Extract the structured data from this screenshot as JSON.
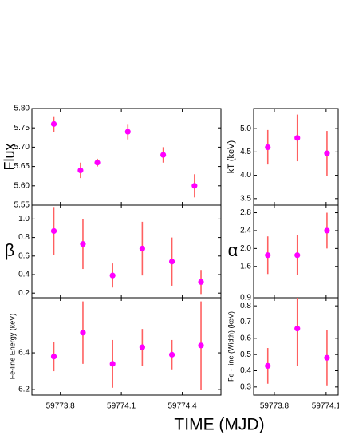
{
  "chart_data": [
    {
      "type": "scatter",
      "ylabel": "Flux",
      "x": [
        59773.768,
        59773.899,
        59773.982,
        59774.132,
        59774.306,
        59774.46
      ],
      "values": [
        5.76,
        5.64,
        5.66,
        5.74,
        5.68,
        5.6
      ],
      "errors": [
        0.02,
        0.02,
        0.01,
        0.02,
        0.02,
        0.03
      ],
      "xlim": [
        59773.66,
        59774.59
      ],
      "ylim": [
        5.55,
        5.8
      ],
      "xticks": [
        59773.8,
        59774.1,
        59774.4
      ],
      "yticks": [
        {
          "value": 5.55,
          "label": "5.55"
        },
        {
          "value": 5.6,
          "label": "5.60"
        },
        {
          "value": 5.65,
          "label": "5.65"
        },
        {
          "value": 5.7,
          "label": "5.70"
        },
        {
          "value": 5.75,
          "label": "5.75"
        },
        {
          "value": 5.8,
          "label": "5.80"
        }
      ],
      "color": "#ff00ff",
      "error_color": "#ff6060",
      "xtick_labels": false
    },
    {
      "type": "scatter",
      "ylabel": "β",
      "x": [
        59773.768,
        59773.911,
        59774.057,
        59774.203,
        59774.349,
        59774.492
      ],
      "values": [
        0.87,
        0.73,
        0.39,
        0.68,
        0.54,
        0.32
      ],
      "errors": [
        0.26,
        0.27,
        0.13,
        0.29,
        0.26,
        0.13
      ],
      "xlim": [
        59773.66,
        59774.59
      ],
      "ylim": [
        0.15,
        1.15
      ],
      "xticks": [
        59773.8,
        59774.1,
        59774.4
      ],
      "yticks": [
        0.2,
        0.4,
        0.6,
        0.8,
        {
          "value": 1,
          "label": "1.0"
        }
      ],
      "color": "#ff00ff",
      "error_color": "#ff6060",
      "xtick_labels": false
    },
    {
      "type": "scatter",
      "ylabel": "Fe-line Energy (keV)",
      "xlabel": "TIME (MJD)",
      "x": [
        59773.768,
        59773.911,
        59774.057,
        59774.203,
        59774.349,
        59774.492
      ],
      "values": [
        6.38,
        6.51,
        6.34,
        6.43,
        6.39,
        6.44
      ],
      "errors": [
        0.08,
        0.17,
        0.13,
        0.1,
        0.08,
        0.24
      ],
      "xlim": [
        59773.66,
        59774.59
      ],
      "ylim": [
        6.17,
        6.7
      ],
      "xticks": [
        59773.8,
        59774.1,
        59774.4
      ],
      "yticks": [
        6.2,
        6.4
      ],
      "color": "#ff00ff",
      "error_color": "#ff6060",
      "xtick_labels": true
    },
    {
      "type": "scatter",
      "ylabel": "kT (keV)",
      "x": [
        59773.762,
        59773.933,
        59774.105
      ],
      "values": [
        4.6,
        4.8,
        4.47
      ],
      "errors": [
        0.37,
        0.5,
        0.48
      ],
      "xlim": [
        59773.68,
        59774.17
      ],
      "ylim": [
        3.36,
        5.43
      ],
      "xticks": [
        59773.8,
        59774.1
      ],
      "yticks": [
        3.5,
        {
          "value": 4,
          "label": "4.0"
        },
        4.5,
        {
          "value": 5,
          "label": "5.0"
        }
      ],
      "color": "#ff00ff",
      "error_color": "#ff6060",
      "xtick_labels": false
    },
    {
      "type": "scatter",
      "ylabel": "α",
      "x": [
        59773.762,
        59773.933,
        59774.105
      ],
      "values": [
        1.85,
        1.85,
        2.4
      ],
      "errors": [
        0.42,
        0.45,
        0.4
      ],
      "xlim": [
        59773.68,
        59774.17
      ],
      "ylim": [
        0.9,
        2.97
      ],
      "xticks": [
        59773.8,
        59774.1
      ],
      "yticks": [
        0.9,
        1.6,
        {
          "value": 2,
          "label": "2.0"
        },
        2.4,
        2.8
      ],
      "color": "#ff00ff",
      "error_color": "#ff6060",
      "xtick_labels": false
    },
    {
      "type": "scatter",
      "ylabel": "Fe - line (Width) (keV)",
      "x": [
        59773.762,
        59773.933,
        59774.105
      ],
      "values": [
        0.43,
        0.66,
        0.48
      ],
      "errors": [
        0.11,
        0.23,
        0.17
      ],
      "xlim": [
        59773.68,
        59774.17
      ],
      "ylim": [
        0.25,
        0.85
      ],
      "xticks": [
        59773.8,
        59774.1
      ],
      "yticks": [
        0.3,
        0.4,
        0.5,
        0.6,
        0.7,
        0.8
      ],
      "color": "#ff00ff",
      "error_color": "#ff6060",
      "xtick_labels": true
    }
  ]
}
